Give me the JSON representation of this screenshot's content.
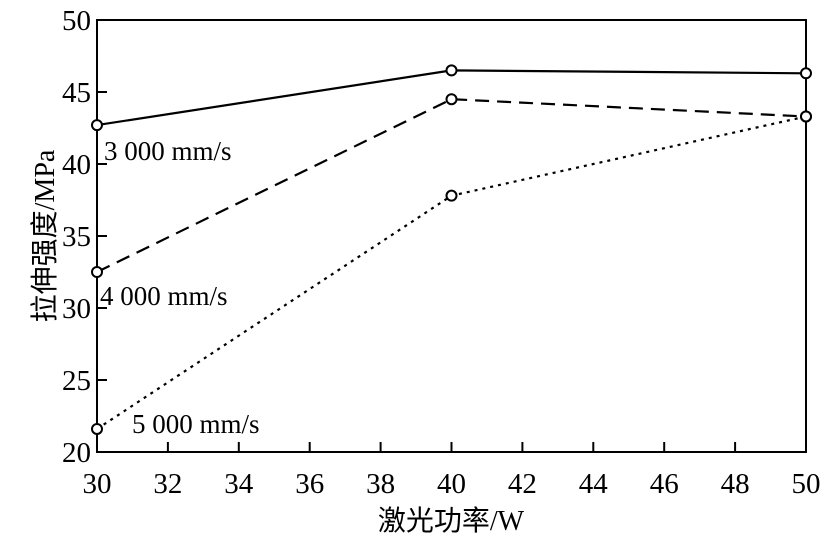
{
  "chart_data": {
    "type": "line",
    "xlabel": "激光功率/W",
    "ylabel": "拉伸强度/MPa",
    "xlim": [
      30,
      50
    ],
    "ylim": [
      20,
      50
    ],
    "xticks": [
      30,
      32,
      34,
      36,
      38,
      40,
      42,
      44,
      46,
      48,
      50
    ],
    "yticks": [
      20,
      25,
      30,
      35,
      40,
      45,
      50
    ],
    "grid": false,
    "color": "#000000",
    "marker": "open-circle",
    "series": [
      {
        "name": "3 000 mm/s",
        "line_style": "solid",
        "x": [
          30,
          40,
          50
        ],
        "y": [
          42.7,
          46.5,
          46.3
        ]
      },
      {
        "name": "4 000 mm/s",
        "line_style": "dashed",
        "x": [
          30,
          40,
          50
        ],
        "y": [
          32.5,
          44.5,
          43.3
        ]
      },
      {
        "name": "5 000 mm/s",
        "line_style": "dotted",
        "x": [
          30,
          40,
          50
        ],
        "y": [
          21.6,
          37.8,
          43.3
        ]
      }
    ]
  }
}
